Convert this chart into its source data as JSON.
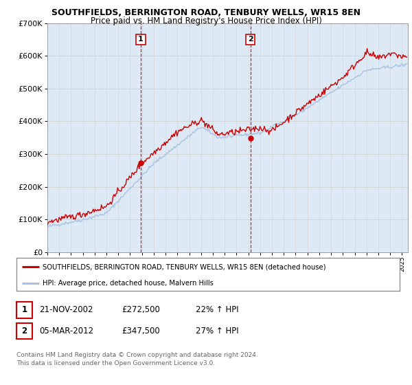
{
  "title": "SOUTHFIELDS, BERRINGTON ROAD, TENBURY WELLS, WR15 8EN",
  "subtitle": "Price paid vs. HM Land Registry's House Price Index (HPI)",
  "legend_line1": "SOUTHFIELDS, BERRINGTON ROAD, TENBURY WELLS, WR15 8EN (detached house)",
  "legend_line2": "HPI: Average price, detached house, Malvern Hills",
  "footnote": "Contains HM Land Registry data © Crown copyright and database right 2024.\nThis data is licensed under the Open Government Licence v3.0.",
  "sale1_label": "1",
  "sale1_date": "21-NOV-2002",
  "sale1_price": "£272,500",
  "sale1_hpi": "22% ↑ HPI",
  "sale2_label": "2",
  "sale2_date": "05-MAR-2012",
  "sale2_price": "£347,500",
  "sale2_hpi": "27% ↑ HPI",
  "sale1_x": 2002.9,
  "sale1_y": 272500,
  "sale2_x": 2012.17,
  "sale2_y": 347500,
  "hpi_color": "#a8c4e0",
  "price_color": "#cc0000",
  "dashed_line_color": "#cc0000",
  "background_color": "#dde9f5",
  "plot_bg_color": "#ffffff",
  "ylim": [
    0,
    700000
  ],
  "ytick_step": 100000,
  "xlim_start": 1995.0,
  "xlim_end": 2025.5,
  "title_fontsize": 9,
  "subtitle_fontsize": 8.5
}
